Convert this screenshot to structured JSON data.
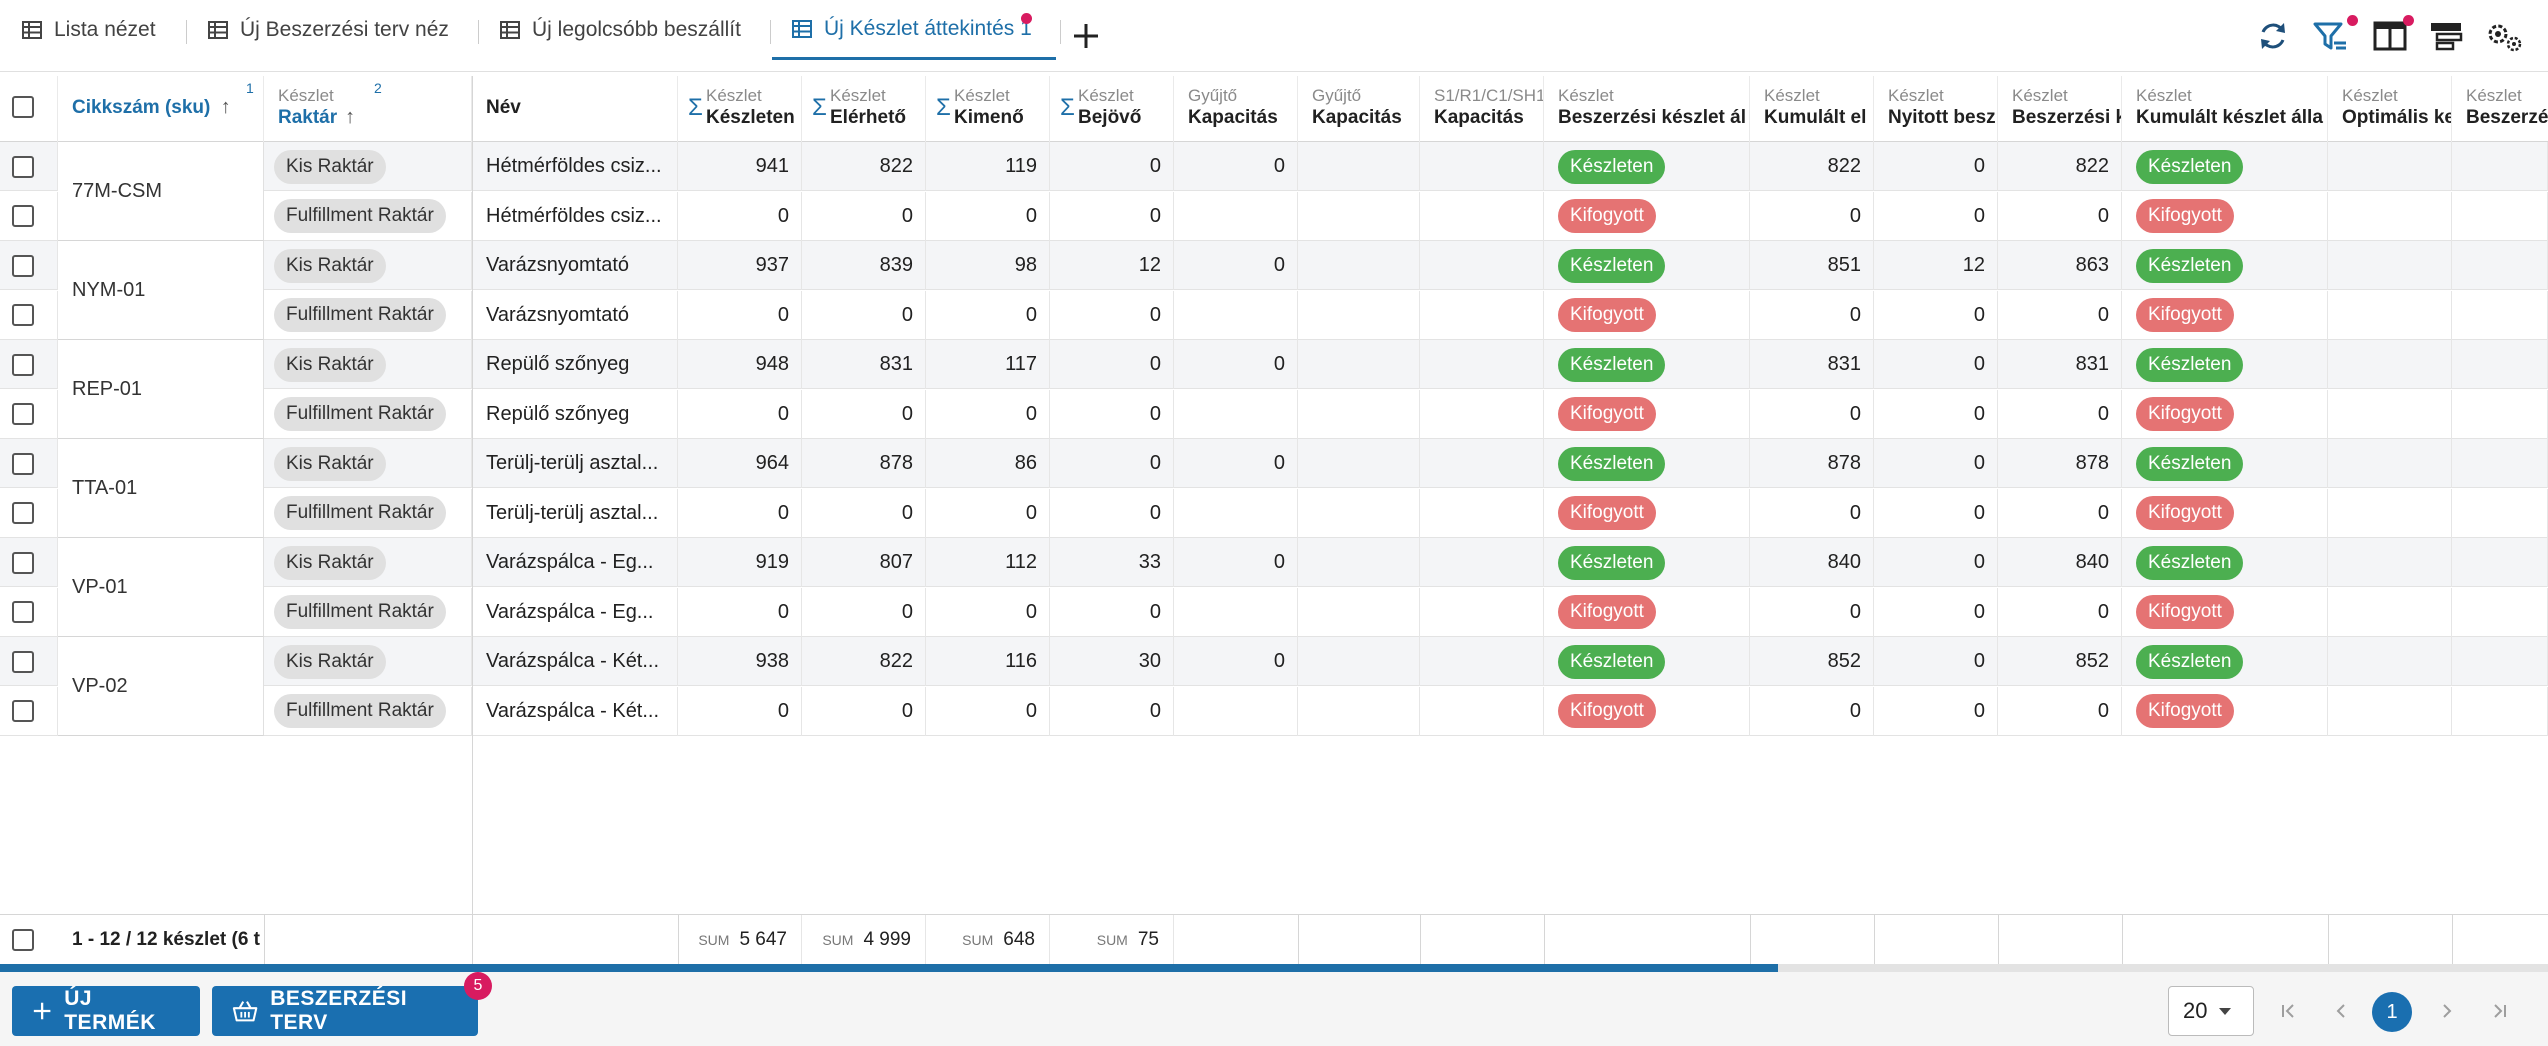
{
  "tabs": [
    {
      "label": "Lista nézet",
      "active": false
    },
    {
      "label": "Új Beszerzési terv néz",
      "active": false
    },
    {
      "label": "Új legolcsóbb beszállít",
      "active": false
    },
    {
      "label": "Új Készlet áttekintés 1",
      "active": true
    }
  ],
  "toolbar": {
    "add_tab": "+"
  },
  "columns": [
    {
      "top": "",
      "label": "Cikkszám (sku)",
      "badge": "1",
      "sorted": true
    },
    {
      "top": "Készlet",
      "label": "Raktár",
      "badge": "2",
      "sorted": true
    },
    {
      "top": "",
      "label": "Név"
    },
    {
      "top": "Készlet",
      "label": "Készleten",
      "sigma": true
    },
    {
      "top": "Készlet",
      "label": "Elérhető",
      "sigma": true
    },
    {
      "top": "Készlet",
      "label": "Kimenő",
      "sigma": true
    },
    {
      "top": "Készlet",
      "label": "Bejövő",
      "sigma": true
    },
    {
      "top": "Gyűjtő",
      "label": "Kapacitás"
    },
    {
      "top": "Gyűjtő",
      "label": "Kapacitás"
    },
    {
      "top": "S1/R1/C1/SH1",
      "label": "Kapacitás"
    },
    {
      "top": "Készlet",
      "label": "Beszerzési készlet ál"
    },
    {
      "top": "Készlet",
      "label": "Kumulált el"
    },
    {
      "top": "Készlet",
      "label": "Nyitott besz"
    },
    {
      "top": "Készlet",
      "label": "Beszerzési k"
    },
    {
      "top": "Készlet",
      "label": "Kumulált készlet álla"
    },
    {
      "top": "Készlet",
      "label": "Optimális ke"
    },
    {
      "top": "Készlet",
      "label": "Beszerzé"
    }
  ],
  "groups": [
    {
      "sku": "77M-CSM",
      "rows": [
        {
          "warehouse": "Kis Raktár",
          "name": "Hétmérföldes csiz...",
          "keszleten": "941",
          "elerheto": "822",
          "kimeno": "119",
          "bejovo": "0",
          "kap1": "0",
          "status": "Készleten",
          "kum_el": "822",
          "nyitott": "0",
          "besz": "822",
          "kum_status": "Készleten"
        },
        {
          "warehouse": "Fulfillment Raktár",
          "name": "Hétmérföldes csiz...",
          "keszleten": "0",
          "elerheto": "0",
          "kimeno": "0",
          "bejovo": "0",
          "kap1": "",
          "status": "Kifogyott",
          "kum_el": "0",
          "nyitott": "0",
          "besz": "0",
          "kum_status": "Kifogyott"
        }
      ]
    },
    {
      "sku": "NYM-01",
      "rows": [
        {
          "warehouse": "Kis Raktár",
          "name": "Varázsnyomtató",
          "keszleten": "937",
          "elerheto": "839",
          "kimeno": "98",
          "bejovo": "12",
          "kap1": "0",
          "status": "Készleten",
          "kum_el": "851",
          "nyitott": "12",
          "besz": "863",
          "kum_status": "Készleten"
        },
        {
          "warehouse": "Fulfillment Raktár",
          "name": "Varázsnyomtató",
          "keszleten": "0",
          "elerheto": "0",
          "kimeno": "0",
          "bejovo": "0",
          "kap1": "",
          "status": "Kifogyott",
          "kum_el": "0",
          "nyitott": "0",
          "besz": "0",
          "kum_status": "Kifogyott"
        }
      ]
    },
    {
      "sku": "REP-01",
      "rows": [
        {
          "warehouse": "Kis Raktár",
          "name": "Repülő szőnyeg",
          "keszleten": "948",
          "elerheto": "831",
          "kimeno": "117",
          "bejovo": "0",
          "kap1": "0",
          "status": "Készleten",
          "kum_el": "831",
          "nyitott": "0",
          "besz": "831",
          "kum_status": "Készleten"
        },
        {
          "warehouse": "Fulfillment Raktár",
          "name": "Repülő szőnyeg",
          "keszleten": "0",
          "elerheto": "0",
          "kimeno": "0",
          "bejovo": "0",
          "kap1": "",
          "status": "Kifogyott",
          "kum_el": "0",
          "nyitott": "0",
          "besz": "0",
          "kum_status": "Kifogyott"
        }
      ]
    },
    {
      "sku": "TTA-01",
      "rows": [
        {
          "warehouse": "Kis Raktár",
          "name": "Terülj-terülj asztal...",
          "keszleten": "964",
          "elerheto": "878",
          "kimeno": "86",
          "bejovo": "0",
          "kap1": "0",
          "status": "Készleten",
          "kum_el": "878",
          "nyitott": "0",
          "besz": "878",
          "kum_status": "Készleten"
        },
        {
          "warehouse": "Fulfillment Raktár",
          "name": "Terülj-terülj asztal...",
          "keszleten": "0",
          "elerheto": "0",
          "kimeno": "0",
          "bejovo": "0",
          "kap1": "",
          "status": "Kifogyott",
          "kum_el": "0",
          "nyitott": "0",
          "besz": "0",
          "kum_status": "Kifogyott"
        }
      ]
    },
    {
      "sku": "VP-01",
      "rows": [
        {
          "warehouse": "Kis Raktár",
          "name": "Varázspálca - Eg...",
          "keszleten": "919",
          "elerheto": "807",
          "kimeno": "112",
          "bejovo": "33",
          "kap1": "0",
          "status": "Készleten",
          "kum_el": "840",
          "nyitott": "0",
          "besz": "840",
          "kum_status": "Készleten"
        },
        {
          "warehouse": "Fulfillment Raktár",
          "name": "Varázspálca - Eg...",
          "keszleten": "0",
          "elerheto": "0",
          "kimeno": "0",
          "bejovo": "0",
          "kap1": "",
          "status": "Kifogyott",
          "kum_el": "0",
          "nyitott": "0",
          "besz": "0",
          "kum_status": "Kifogyott"
        }
      ]
    },
    {
      "sku": "VP-02",
      "rows": [
        {
          "warehouse": "Kis Raktár",
          "name": "Varázspálca - Két...",
          "keszleten": "938",
          "elerheto": "822",
          "kimeno": "116",
          "bejovo": "30",
          "kap1": "0",
          "status": "Készleten",
          "kum_el": "852",
          "nyitott": "0",
          "besz": "852",
          "kum_status": "Készleten"
        },
        {
          "warehouse": "Fulfillment Raktár",
          "name": "Varázspálca - Két...",
          "keszleten": "0",
          "elerheto": "0",
          "kimeno": "0",
          "bejovo": "0",
          "kap1": "",
          "status": "Kifogyott",
          "kum_el": "0",
          "nyitott": "0",
          "besz": "0",
          "kum_status": "Kifogyott"
        }
      ]
    }
  ],
  "footer": {
    "count": "1 - 12 / 12 készlet (6 t",
    "sum_label": "SUM",
    "sum_keszleten": "5 647",
    "sum_elerheto": "4 999",
    "sum_kimeno": "648",
    "sum_bejovo": "75"
  },
  "bottom": {
    "new_product": "ÚJ TERMÉK",
    "purchase_plan": "BESZERZÉSI TERV",
    "purchase_badge": "5",
    "page_size": "20",
    "current_page": "1"
  },
  "colors": {
    "accent": "#1a6fb0",
    "in_stock": "#4caf50",
    "out_stock": "#e57373",
    "badge": "#d81b60"
  }
}
